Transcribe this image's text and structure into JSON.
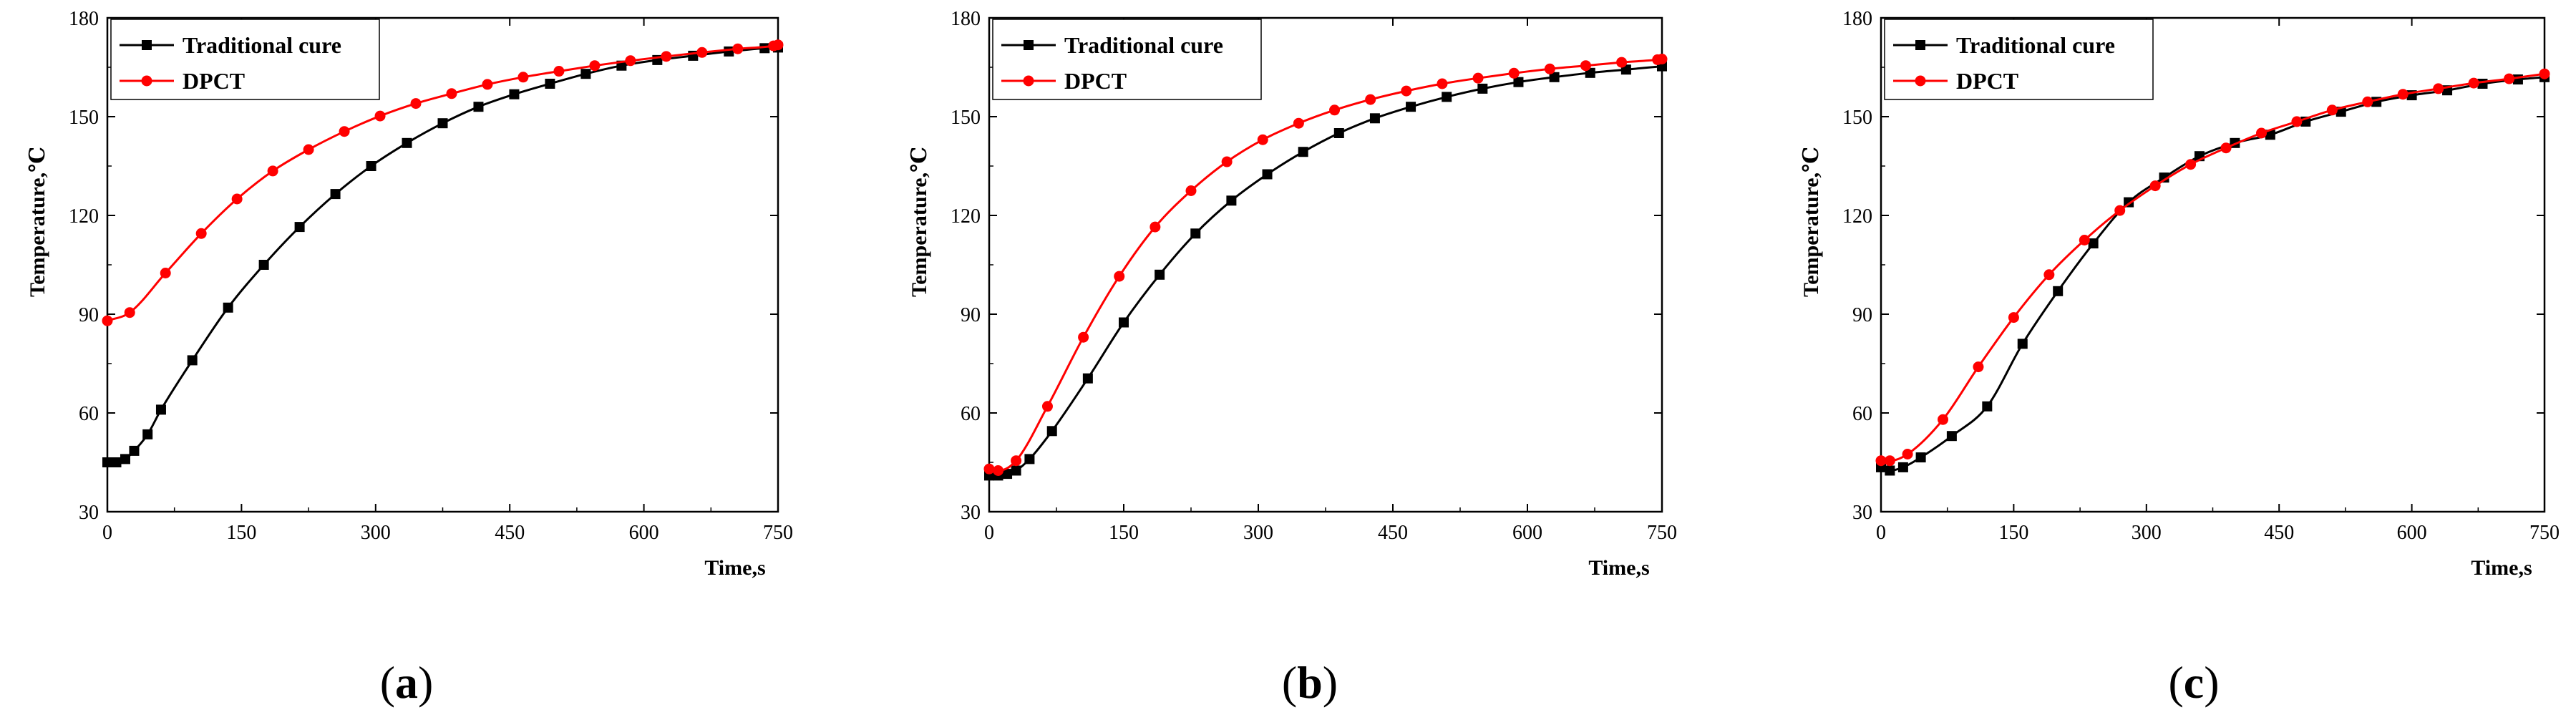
{
  "chart_data": [
    {
      "type": "line",
      "panel_label": "a",
      "xlabel": "Time,s",
      "ylabel": "Temperature,℃",
      "xlim": [
        0,
        750
      ],
      "ylim": [
        30,
        180
      ],
      "xticks": [
        0,
        150,
        300,
        450,
        600,
        750
      ],
      "yticks": [
        30,
        60,
        90,
        120,
        150,
        180
      ],
      "grid": false,
      "legend_position": "top-left",
      "series": [
        {
          "name": "Traditional cure",
          "color": "#000000",
          "marker": "square",
          "x": [
            0,
            10,
            20,
            30,
            45,
            60,
            95,
            135,
            175,
            215,
            255,
            295,
            335,
            375,
            415,
            455,
            495,
            535,
            575,
            615,
            655,
            695,
            735,
            750
          ],
          "y": [
            45,
            45,
            46,
            48.5,
            53.5,
            61,
            76,
            92,
            105,
            116.5,
            126.5,
            135,
            142,
            148,
            153,
            156.8,
            160,
            163,
            165.5,
            167.2,
            168.5,
            169.8,
            170.8,
            171
          ]
        },
        {
          "name": "DPCT",
          "color": "#ff0000",
          "marker": "circle",
          "x": [
            0,
            25,
            65,
            105,
            145,
            185,
            225,
            265,
            305,
            345,
            385,
            425,
            465,
            505,
            545,
            585,
            625,
            665,
            705,
            745,
            750
          ],
          "y": [
            88,
            90.5,
            102.5,
            114.5,
            125,
            133.5,
            140,
            145.5,
            150.2,
            154,
            157,
            159.8,
            162,
            163.8,
            165.5,
            167,
            168.3,
            169.5,
            170.6,
            171.5,
            171.8
          ]
        }
      ]
    },
    {
      "type": "line",
      "panel_label": "b",
      "xlabel": "Time,s",
      "ylabel": "Temperature,℃",
      "xlim": [
        0,
        750
      ],
      "ylim": [
        30,
        180
      ],
      "xticks": [
        0,
        150,
        300,
        450,
        600,
        750
      ],
      "yticks": [
        30,
        60,
        90,
        120,
        150,
        180
      ],
      "grid": false,
      "legend_position": "top-left",
      "series": [
        {
          "name": "Traditional cure",
          "color": "#000000",
          "marker": "square",
          "x": [
            0,
            10,
            20,
            30,
            45,
            70,
            110,
            150,
            190,
            230,
            270,
            310,
            350,
            390,
            430,
            470,
            510,
            550,
            590,
            630,
            670,
            710,
            750
          ],
          "y": [
            41,
            41,
            41.5,
            42.5,
            46,
            54.5,
            70.5,
            87.5,
            102,
            114.5,
            124.5,
            132.5,
            139.3,
            145,
            149.5,
            153,
            156,
            158.5,
            160.5,
            162,
            163.3,
            164.3,
            165.3
          ]
        },
        {
          "name": "DPCT",
          "color": "#ff0000",
          "marker": "circle",
          "x": [
            0,
            10,
            30,
            65,
            105,
            145,
            185,
            225,
            265,
            305,
            345,
            385,
            425,
            465,
            505,
            545,
            585,
            625,
            665,
            705,
            745,
            750
          ],
          "y": [
            43,
            42.5,
            45.5,
            62,
            83,
            101.5,
            116.5,
            127.5,
            136.3,
            143,
            148,
            152,
            155.2,
            157.8,
            160,
            161.7,
            163.2,
            164.5,
            165.5,
            166.5,
            167.3,
            167.5
          ]
        }
      ]
    },
    {
      "type": "line",
      "panel_label": "c",
      "xlabel": "Time,s",
      "ylabel": "Temperature,℃",
      "xlim": [
        0,
        750
      ],
      "ylim": [
        30,
        180
      ],
      "xticks": [
        0,
        150,
        300,
        450,
        600,
        750
      ],
      "yticks": [
        30,
        60,
        90,
        120,
        150,
        180
      ],
      "grid": false,
      "legend_position": "top-left",
      "series": [
        {
          "name": "Traditional cure",
          "color": "#000000",
          "marker": "square",
          "x": [
            0,
            10,
            25,
            45,
            80,
            120,
            160,
            200,
            240,
            280,
            320,
            360,
            400,
            440,
            480,
            520,
            560,
            600,
            640,
            680,
            720,
            750
          ],
          "y": [
            43.5,
            42.5,
            43.5,
            46.5,
            53,
            62,
            81,
            97,
            111.5,
            124,
            131.5,
            138,
            142,
            144.5,
            148.5,
            151.5,
            154.5,
            156.5,
            158,
            160,
            161.3,
            162
          ]
        },
        {
          "name": "DPCT",
          "color": "#ff0000",
          "marker": "circle",
          "x": [
            0,
            10,
            30,
            70,
            110,
            150,
            190,
            230,
            270,
            310,
            350,
            390,
            430,
            470,
            510,
            550,
            590,
            630,
            670,
            710,
            750
          ],
          "y": [
            45.5,
            45.5,
            47.5,
            58,
            74,
            89,
            102,
            112.5,
            121.5,
            129,
            135.5,
            140.5,
            145,
            148.5,
            152,
            154.5,
            156.8,
            158.5,
            160.2,
            161.5,
            163
          ]
        }
      ]
    }
  ]
}
